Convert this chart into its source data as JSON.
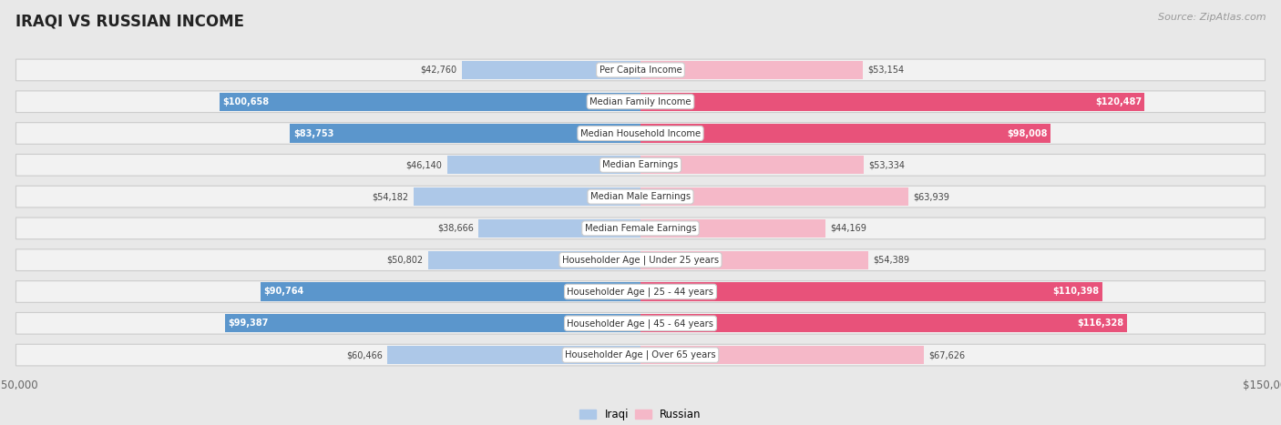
{
  "title": "IRAQI VS RUSSIAN INCOME",
  "source": "Source: ZipAtlas.com",
  "categories": [
    "Per Capita Income",
    "Median Family Income",
    "Median Household Income",
    "Median Earnings",
    "Median Male Earnings",
    "Median Female Earnings",
    "Householder Age | Under 25 years",
    "Householder Age | 25 - 44 years",
    "Householder Age | 45 - 64 years",
    "Householder Age | Over 65 years"
  ],
  "iraqi_values": [
    42760,
    100658,
    83753,
    46140,
    54182,
    38666,
    50802,
    90764,
    99387,
    60466
  ],
  "russian_values": [
    53154,
    120487,
    98008,
    53334,
    63939,
    44169,
    54389,
    110398,
    116328,
    67626
  ],
  "iraqi_labels": [
    "$42,760",
    "$100,658",
    "$83,753",
    "$46,140",
    "$54,182",
    "$38,666",
    "$50,802",
    "$90,764",
    "$99,387",
    "$60,466"
  ],
  "russian_labels": [
    "$53,154",
    "$120,487",
    "$98,008",
    "$53,334",
    "$63,939",
    "$44,169",
    "$54,389",
    "$110,398",
    "$116,328",
    "$67,626"
  ],
  "iraqi_color_light": "#adc8e8",
  "iraqi_color_dark": "#5b96cc",
  "russian_color_light": "#f5b8c8",
  "russian_color_dark": "#e8527a",
  "iraqi_threshold": 70000,
  "russian_threshold": 70000,
  "max_value": 150000,
  "bg_color": "#e8e8e8",
  "row_bg_color": "#f2f2f2",
  "row_bg_alt": "#e0e0e0",
  "label_bg_color": "#ffffff",
  "title_color": "#222222",
  "source_color": "#999999",
  "axis_label_color": "#666666",
  "iraqi_legend": "Iraqi",
  "russian_legend": "Russian",
  "value_color_outside": "#444444",
  "value_color_inside": "#ffffff"
}
